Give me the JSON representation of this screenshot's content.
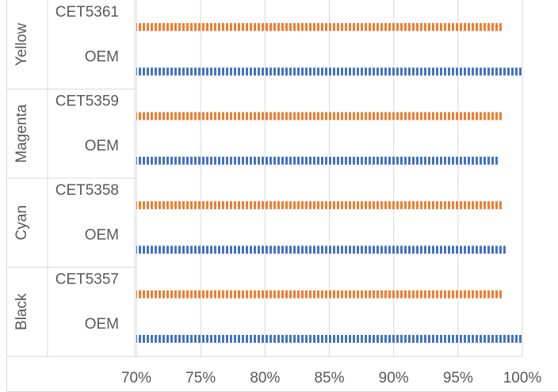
{
  "chart_data": {
    "type": "bar",
    "orientation": "horizontal",
    "groups": [
      {
        "label": "Yellow",
        "rows": [
          {
            "label": "CET5361",
            "value": 98.4,
            "color": "#ed7d31"
          },
          {
            "label": "OEM",
            "value": 100.0,
            "color": "#4472c4"
          }
        ]
      },
      {
        "label": "Magenta",
        "rows": [
          {
            "label": "CET5359",
            "value": 98.4,
            "color": "#ed7d31"
          },
          {
            "label": "OEM",
            "value": 98.1,
            "color": "#4472c4"
          }
        ]
      },
      {
        "label": "Cyan",
        "rows": [
          {
            "label": "CET5358",
            "value": 98.4,
            "color": "#ed7d31"
          },
          {
            "label": "OEM",
            "value": 98.7,
            "color": "#4472c4"
          }
        ]
      },
      {
        "label": "Black",
        "rows": [
          {
            "label": "CET5357",
            "value": 98.4,
            "color": "#ed7d31"
          },
          {
            "label": "OEM",
            "value": 100.0,
            "color": "#4472c4"
          }
        ]
      }
    ],
    "xlim": [
      70,
      100
    ],
    "x_ticks": [
      "70%",
      "75%",
      "80%",
      "85%",
      "90%",
      "95%",
      "100%"
    ],
    "x_tick_values": [
      70,
      75,
      80,
      85,
      90,
      95,
      100
    ],
    "grid": true,
    "bar_pattern": "vertical-stripes"
  }
}
